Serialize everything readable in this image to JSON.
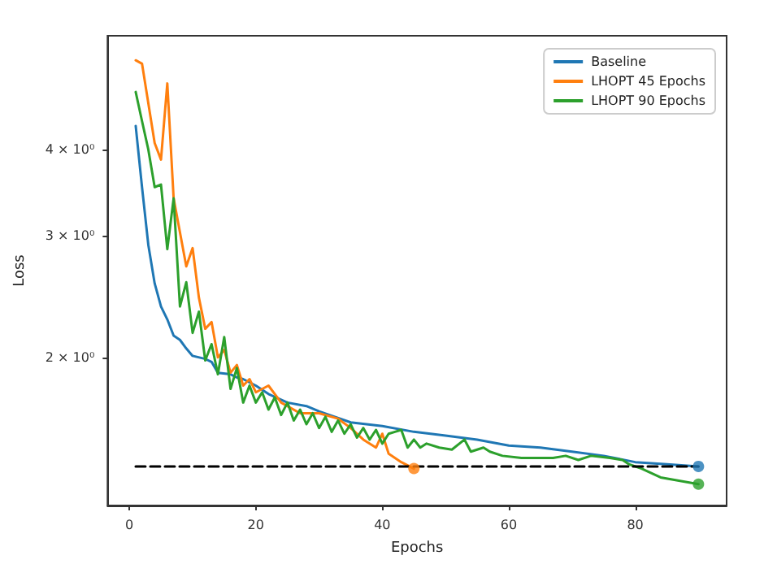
{
  "chart_data": {
    "type": "line",
    "xlabel": "Epochs",
    "ylabel": "Loss",
    "log": "y",
    "grid": false,
    "legend": "top right",
    "marker": "none",
    "xlim": [
      -3.45,
      94.45
    ],
    "xticks": [
      0,
      20,
      40,
      60,
      80
    ],
    "ylim": [
      1.22,
      5.85
    ],
    "yticks": [
      {
        "value": 2,
        "label": "2 × 10⁰"
      },
      {
        "value": 3,
        "label": "3 × 10⁰"
      },
      {
        "value": 4,
        "label": "4 × 10⁰"
      }
    ],
    "series": [
      {
        "name": "Baseline",
        "color": "#1f77b4",
        "x": [
          1,
          2,
          3,
          4,
          5,
          6,
          7,
          8,
          9,
          10,
          12,
          13,
          14,
          16,
          17,
          18,
          20,
          22,
          25,
          28,
          30,
          35,
          40,
          45,
          50,
          55,
          60,
          65,
          70,
          75,
          80,
          85,
          90
        ],
        "values": [
          4.33,
          3.53,
          2.91,
          2.56,
          2.37,
          2.27,
          2.15,
          2.12,
          2.06,
          2.01,
          1.99,
          1.97,
          1.9,
          1.89,
          1.87,
          1.86,
          1.82,
          1.77,
          1.72,
          1.7,
          1.67,
          1.61,
          1.59,
          1.56,
          1.54,
          1.52,
          1.49,
          1.48,
          1.46,
          1.44,
          1.41,
          1.4,
          1.39
        ]
      },
      {
        "name": "LHOPT 45 Epochs",
        "color": "#ff7f0e",
        "x": [
          1,
          2,
          4,
          5,
          6,
          7,
          9,
          10,
          11,
          12,
          13,
          14,
          15,
          16,
          17,
          18,
          19,
          20,
          22,
          24,
          27,
          30,
          33,
          35,
          37,
          39,
          40,
          41,
          43,
          45
        ],
        "values": [
          5.39,
          5.33,
          4.09,
          3.87,
          4.99,
          3.4,
          2.71,
          2.88,
          2.44,
          2.2,
          2.25,
          2.0,
          2.05,
          1.9,
          1.95,
          1.82,
          1.86,
          1.78,
          1.82,
          1.72,
          1.66,
          1.66,
          1.63,
          1.58,
          1.52,
          1.48,
          1.55,
          1.45,
          1.41,
          1.38
        ]
      },
      {
        "name": "LHOPT 90 Epochs",
        "color": "#2ca02c",
        "x": [
          1,
          2,
          3,
          4,
          5,
          6,
          7,
          8,
          9,
          10,
          11,
          12,
          13,
          14,
          15,
          16,
          17,
          18,
          19,
          20,
          21,
          22,
          23,
          24,
          25,
          26,
          27,
          28,
          29,
          30,
          31,
          32,
          33,
          34,
          35,
          36,
          37,
          38,
          39,
          40,
          41,
          42,
          43,
          44,
          45,
          46,
          47,
          49,
          51,
          53,
          54,
          56,
          57,
          59,
          62,
          64,
          67,
          69,
          71,
          73,
          76,
          78,
          79,
          81,
          84,
          88,
          90
        ],
        "values": [
          4.85,
          4.4,
          4.0,
          3.53,
          3.56,
          2.87,
          3.4,
          2.37,
          2.57,
          2.17,
          2.33,
          1.98,
          2.09,
          1.89,
          2.14,
          1.8,
          1.93,
          1.72,
          1.82,
          1.72,
          1.78,
          1.68,
          1.75,
          1.65,
          1.72,
          1.62,
          1.68,
          1.6,
          1.66,
          1.58,
          1.64,
          1.56,
          1.62,
          1.55,
          1.6,
          1.53,
          1.58,
          1.52,
          1.57,
          1.5,
          1.55,
          1.56,
          1.57,
          1.48,
          1.52,
          1.48,
          1.5,
          1.48,
          1.47,
          1.52,
          1.46,
          1.48,
          1.46,
          1.44,
          1.43,
          1.43,
          1.43,
          1.44,
          1.42,
          1.44,
          1.43,
          1.42,
          1.4,
          1.38,
          1.34,
          1.32,
          1.31
        ]
      },
      {
        "type": "line",
        "color": "#000000",
        "line_style": "dashed",
        "x": [
          1,
          90
        ],
        "values": [
          1.39,
          1.39
        ]
      },
      {
        "type": "scatter",
        "marker": "circle",
        "color": "#1f77b4",
        "x": [
          90
        ],
        "values": [
          1.39
        ]
      },
      {
        "type": "scatter",
        "marker": "circle",
        "color": "#ff7f0e",
        "x": [
          45
        ],
        "values": [
          1.38
        ]
      },
      {
        "type": "scatter",
        "marker": "circle",
        "color": "#2ca02c",
        "x": [
          90
        ],
        "values": [
          1.31
        ]
      }
    ]
  }
}
